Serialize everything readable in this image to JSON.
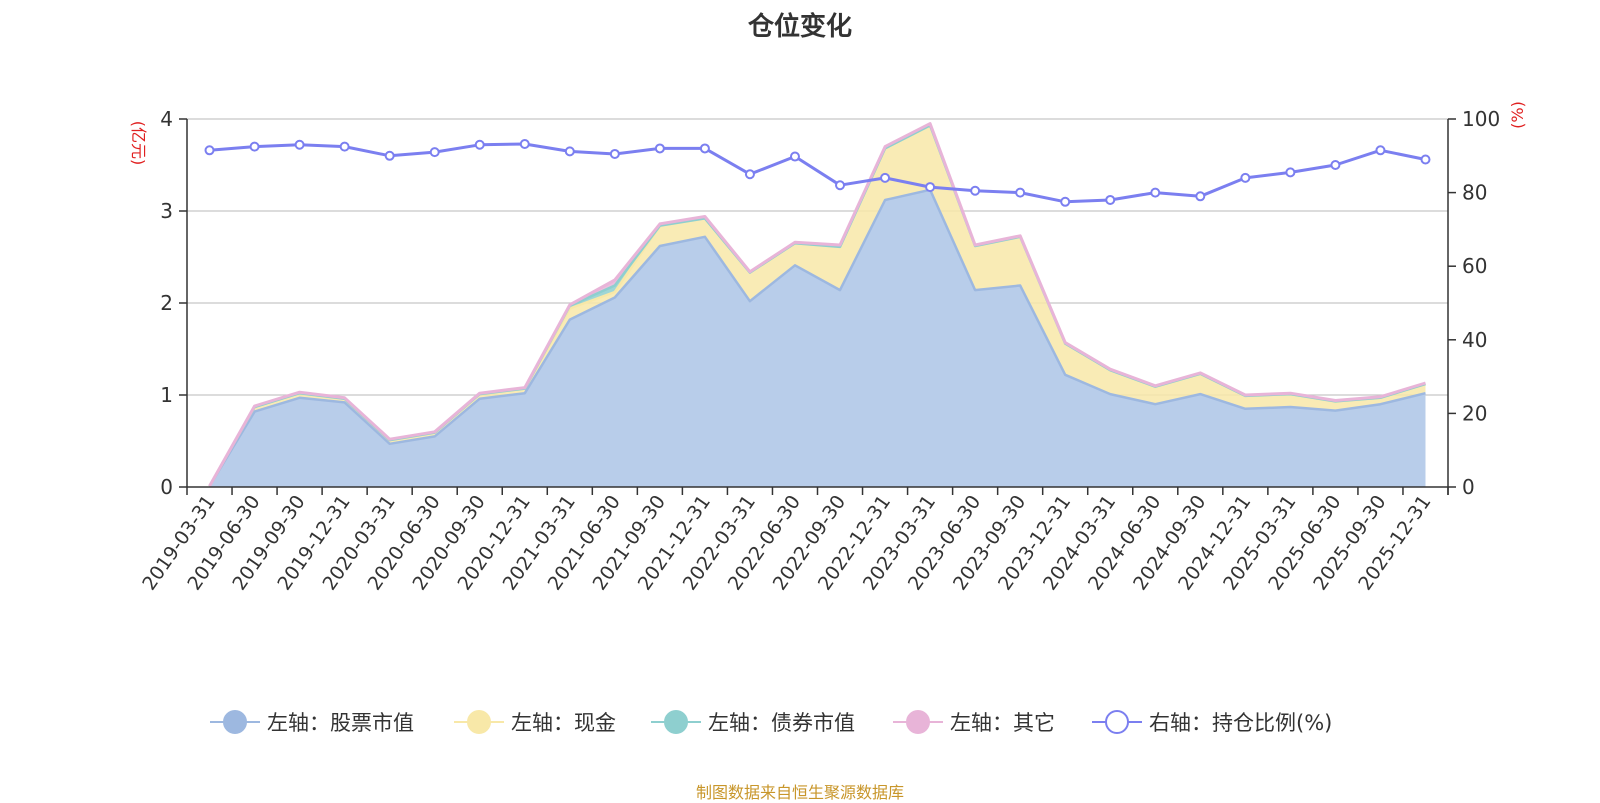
{
  "title": "仓位变化",
  "source": "制图数据来自恒生聚源数据库",
  "colors": {
    "stock": "#9db8e0",
    "cash": "#f8e8a8",
    "bond": "#8ecfcf",
    "other": "#e8b4d8",
    "ratio": "#7b7ff0"
  },
  "chart_data": {
    "type": "area",
    "title": "仓位变化",
    "categories": [
      "2019-03-31",
      "2019-06-30",
      "2019-09-30",
      "2019-12-31",
      "2020-03-31",
      "2020-06-30",
      "2020-09-30",
      "2020-12-31",
      "2021-03-31",
      "2021-06-30",
      "2021-09-30",
      "2021-12-31",
      "2022-03-31",
      "2022-06-30",
      "2022-09-30",
      "2022-12-31",
      "2023-03-31",
      "2023-06-30",
      "2023-09-30",
      "2023-12-31",
      "2024-03-31",
      "2024-06-30",
      "2024-09-30",
      "2024-12-31",
      "2025-03-31",
      "2025-06-30",
      "2025-09-30",
      "2025-12-31"
    ],
    "left_axis": {
      "label": "(亿元)",
      "ylim": [
        0,
        4
      ],
      "ticks": [
        "0",
        "1",
        "2",
        "3",
        "4"
      ]
    },
    "right_axis": {
      "label": "(%)",
      "ylim": [
        0,
        100
      ],
      "ticks": [
        "0",
        "20",
        "40",
        "60",
        "80",
        "100"
      ]
    },
    "series": [
      {
        "name": "左轴：股票市值",
        "axis": "left",
        "stack": true,
        "values": [
          0.01,
          0.82,
          0.97,
          0.92,
          0.47,
          0.55,
          0.96,
          1.02,
          1.82,
          2.06,
          2.62,
          2.72,
          2.02,
          2.41,
          2.14,
          3.12,
          3.23,
          2.14,
          2.19,
          1.22,
          1.01,
          0.9,
          1.01,
          0.85,
          0.87,
          0.83,
          0.9,
          1.02
        ]
      },
      {
        "name": "左轴：现金",
        "axis": "left",
        "stack": true,
        "values": [
          0.0,
          0.05,
          0.05,
          0.04,
          0.04,
          0.04,
          0.05,
          0.05,
          0.12,
          0.06,
          0.22,
          0.2,
          0.31,
          0.24,
          0.47,
          0.56,
          0.7,
          0.48,
          0.53,
          0.34,
          0.26,
          0.19,
          0.22,
          0.14,
          0.14,
          0.1,
          0.07,
          0.1
        ]
      },
      {
        "name": "左轴：债券市值",
        "axis": "left",
        "stack": true,
        "values": [
          0,
          0,
          0,
          0,
          0,
          0,
          0,
          0,
          0.03,
          0.07,
          0,
          0,
          0,
          0,
          0,
          0,
          0,
          0,
          0,
          0,
          0,
          0,
          0,
          0,
          0,
          0,
          0,
          0
        ]
      },
      {
        "name": "左轴：其它",
        "axis": "left",
        "stack": true,
        "values": [
          0.0,
          0.01,
          0.01,
          0.01,
          0.01,
          0.01,
          0.01,
          0.01,
          0.01,
          0.06,
          0.02,
          0.02,
          0.01,
          0.01,
          0.02,
          0.02,
          0.02,
          0.01,
          0.01,
          0.01,
          0.01,
          0.01,
          0.01,
          0.01,
          0.01,
          0.01,
          0.01,
          0.01
        ]
      },
      {
        "name": "右轴：持仓比例(%)",
        "axis": "right",
        "type": "line",
        "values": [
          91.5,
          92.5,
          93,
          92.5,
          90,
          91,
          93,
          93.2,
          91.2,
          90.5,
          92,
          92,
          85,
          89.8,
          82,
          84,
          81.5,
          80.5,
          80,
          77.5,
          78,
          80,
          79,
          84,
          85.5,
          87.5,
          91.5,
          89
        ]
      }
    ],
    "legend": [
      "左轴：股票市值",
      "左轴：现金",
      "左轴：债券市值",
      "左轴：其它",
      "右轴：持仓比例(%)"
    ],
    "legend_position": "bottom",
    "grid": true
  }
}
